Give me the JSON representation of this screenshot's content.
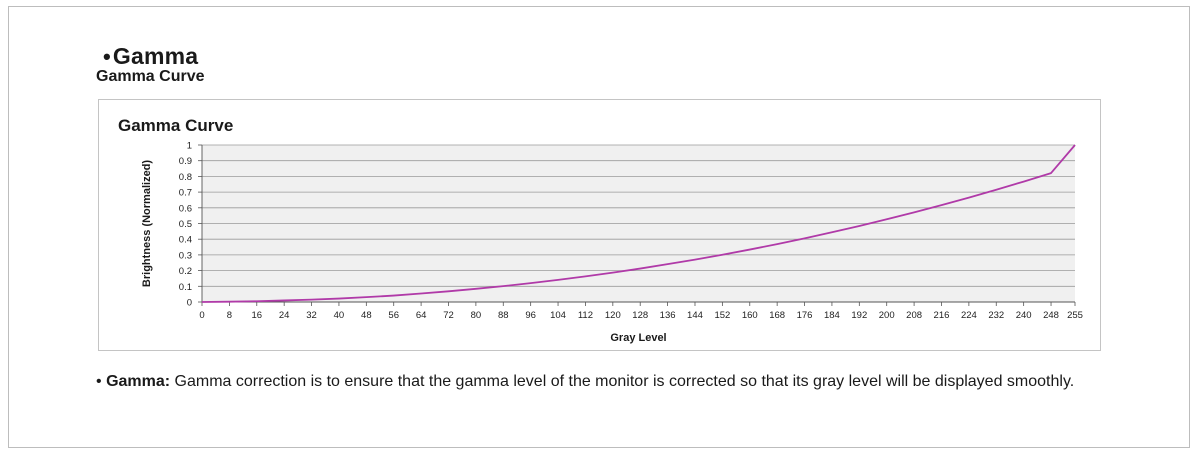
{
  "section": {
    "bullet": "•",
    "title": "Gamma",
    "subtitle": "Gamma Curve"
  },
  "description": {
    "bullet": "•",
    "term": "Gamma:",
    "text": " Gamma correction is to ensure that the gamma level of the monitor is corrected so that its gray level will be displayed smoothly."
  },
  "colors": {
    "line": "#b03aa8",
    "plot_bg": "#f0f0f0",
    "grid": "#9a9a9a",
    "axis": "#555555"
  },
  "chart_data": {
    "type": "line",
    "title": "Gamma Curve",
    "xlabel": "Gray Level",
    "ylabel": "Brightness (Normalized)",
    "xlim": [
      0,
      255
    ],
    "ylim": [
      0,
      1
    ],
    "x_ticks": [
      "0",
      "8",
      "16",
      "24",
      "32",
      "40",
      "48",
      "56",
      "64",
      "72",
      "80",
      "88",
      "96",
      "104",
      "112",
      "120",
      "128",
      "136",
      "144",
      "152",
      "160",
      "168",
      "176",
      "184",
      "192",
      "200",
      "208",
      "216",
      "224",
      "232",
      "240",
      "248",
      "255"
    ],
    "y_ticks": [
      "0",
      "0.1",
      "0.2",
      "0.3",
      "0.4",
      "0.5",
      "0.6",
      "0.7",
      "0.8",
      "0.9",
      "1"
    ],
    "grid": true,
    "legend": "none",
    "series": [
      {
        "x": [
          0,
          8,
          16,
          24,
          32,
          40,
          48,
          56,
          64,
          72,
          80,
          88,
          96,
          104,
          112,
          120,
          128,
          136,
          144,
          152,
          160,
          168,
          176,
          184,
          192,
          200,
          208,
          216,
          224,
          232,
          240,
          248,
          255
        ],
        "y": [
          0,
          0.002,
          0.005,
          0.01,
          0.015,
          0.022,
          0.031,
          0.041,
          0.054,
          0.068,
          0.084,
          0.101,
          0.12,
          0.141,
          0.163,
          0.187,
          0.213,
          0.241,
          0.27,
          0.301,
          0.334,
          0.369,
          0.405,
          0.444,
          0.484,
          0.527,
          0.571,
          0.617,
          0.665,
          0.715,
          0.767,
          0.821,
          1.0
        ]
      }
    ]
  }
}
